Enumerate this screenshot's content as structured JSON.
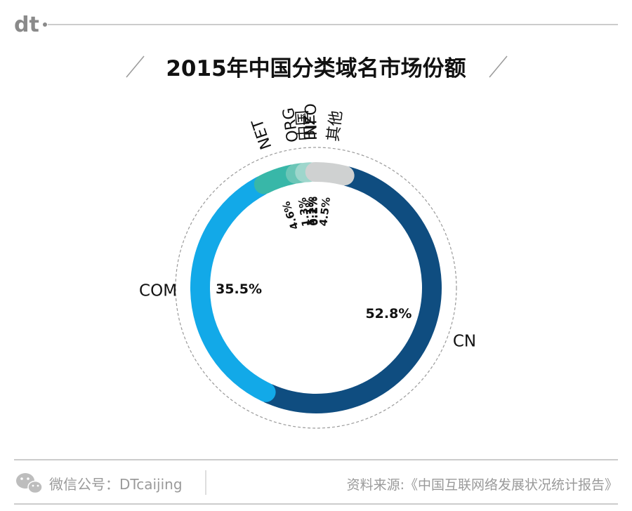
{
  "brand": {
    "logo": "dt"
  },
  "footer": {
    "wechat_label": "微信公号：DTcaijing",
    "source_label": "资料来源:《中国互联网络发展状况统计报告》"
  },
  "colors": {
    "CN": "#0f4d80",
    "COM": "#12a9e8",
    "NET": "#38b7a8",
    "ORG": "#6bc6b7",
    "中国": "#9ed6cc",
    "BIZ": "#bfe3dd",
    "INFO": "#e8ecec",
    "其他": "#cfd1d1"
  },
  "chart_data": {
    "type": "pie",
    "variant": "donut",
    "title": "2015年中国分类域名市场份额",
    "unit": "%",
    "categories": [
      "CN",
      "COM",
      "NET",
      "ORG",
      "中国",
      "BIZ",
      "INFO",
      "其他"
    ],
    "values": [
      52.8,
      35.5,
      4.6,
      1.3,
      1.1,
      0.2,
      0.1,
      4.5
    ],
    "value_labels": [
      "52.8%",
      "35.5%",
      "4.6%",
      "1.3%",
      "1.1%",
      "0.2%",
      "0.1%",
      "4.5%"
    ],
    "legend": "none"
  }
}
